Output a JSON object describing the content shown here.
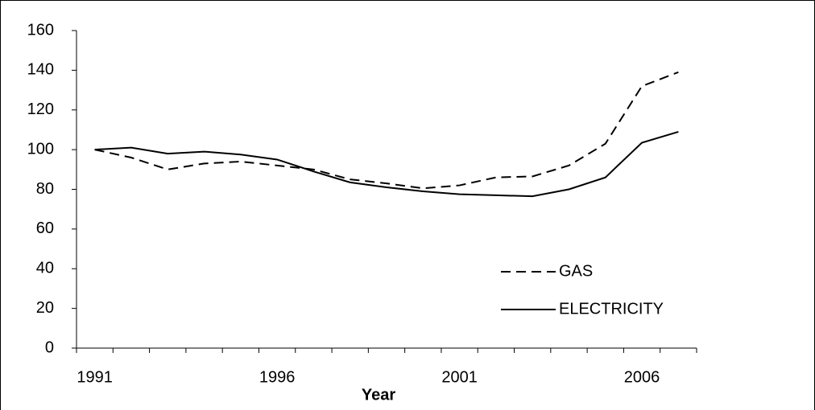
{
  "chart_data": {
    "type": "line",
    "x_label": "Year",
    "categories": [
      "1991",
      null,
      null,
      null,
      null,
      "1996",
      null,
      null,
      null,
      null,
      "2001",
      null,
      null,
      null,
      null,
      "2006",
      null
    ],
    "series": [
      {
        "name": "GAS",
        "color": "#000000",
        "linestyle": "dashed",
        "values": [
          100,
          96,
          90,
          93,
          94,
          92,
          90,
          85,
          83,
          80.5,
          82,
          86,
          86.5,
          92,
          103,
          132,
          139
        ]
      },
      {
        "name": "ELECTRICITY",
        "color": "#000000",
        "linestyle": "solid",
        "values": [
          100,
          101,
          98,
          99,
          97.5,
          95,
          89,
          83.5,
          81,
          79,
          77.5,
          77,
          76.5,
          80,
          86,
          103.5,
          109
        ]
      }
    ],
    "ylim": [
      0,
      160
    ],
    "yticks": [
      0,
      20,
      40,
      60,
      80,
      100,
      120,
      140,
      160
    ],
    "legend": "lower right",
    "grid": false
  }
}
